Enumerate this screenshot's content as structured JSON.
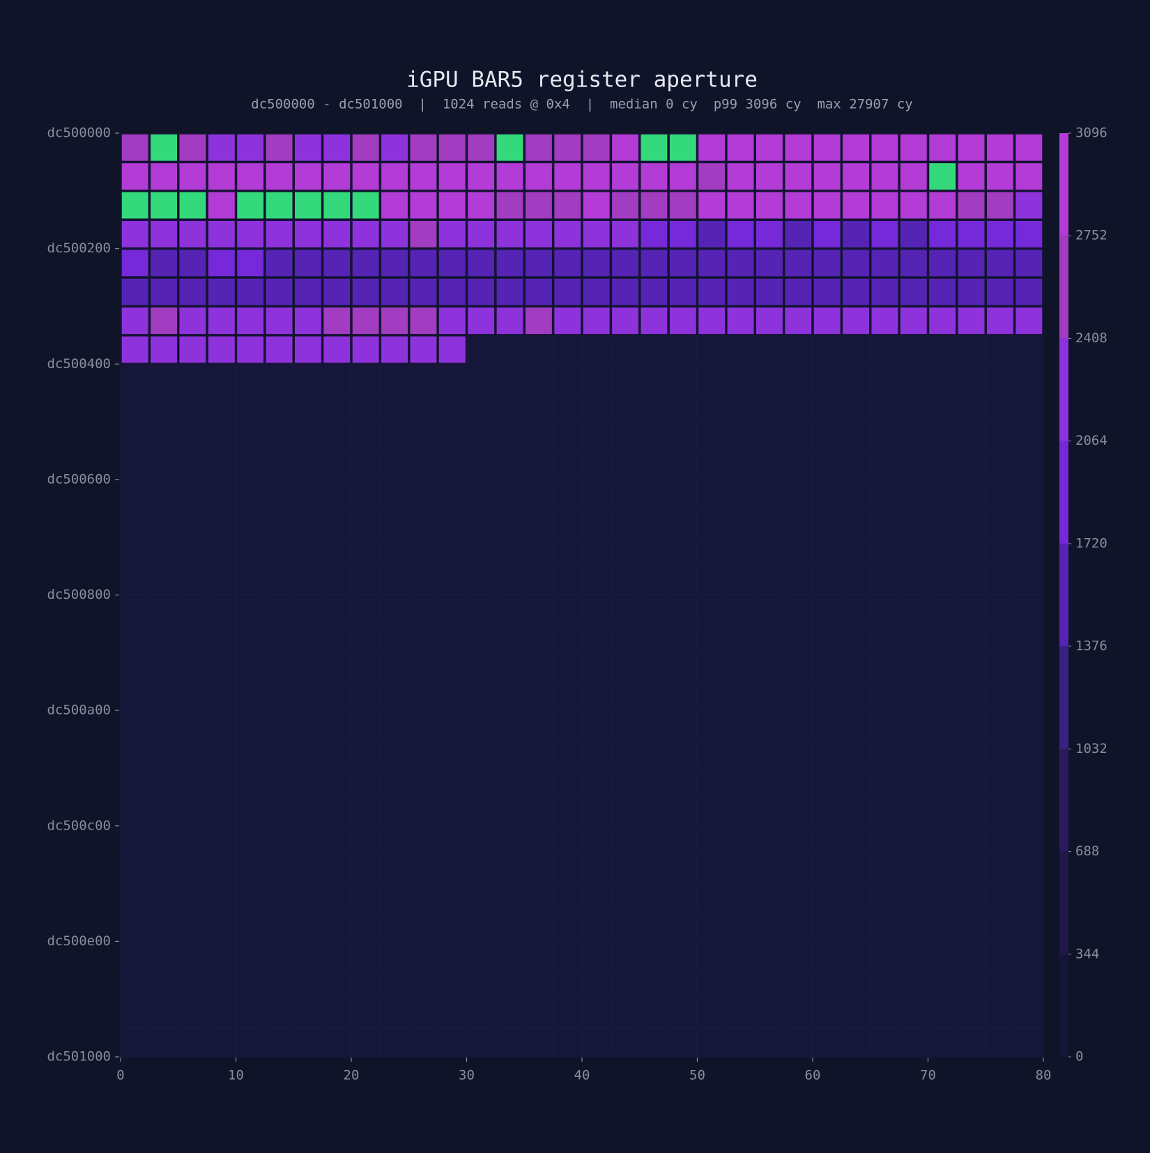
{
  "chart_data": {
    "type": "heatmap",
    "title": "iGPU BAR5 register aperture",
    "subtitle": "dc500000 - dc501000  |  1024 reads @ 0x4  |  median 0 cy  p99 3096 cy  max 27907 cy",
    "xlim": [
      0,
      80
    ],
    "xticks": [
      0,
      10,
      20,
      30,
      40,
      50,
      60,
      70,
      80
    ],
    "ylim": [
      0,
      4096
    ],
    "yticks": [
      {
        "value": 0,
        "label": "dc500000"
      },
      {
        "value": 512,
        "label": "dc500200"
      },
      {
        "value": 1024,
        "label": "dc500400"
      },
      {
        "value": 1536,
        "label": "dc500600"
      },
      {
        "value": 2048,
        "label": "dc500800"
      },
      {
        "value": 2560,
        "label": "dc500a00"
      },
      {
        "value": 3072,
        "label": "dc500c00"
      },
      {
        "value": 3584,
        "label": "dc500e00"
      },
      {
        "value": 4096,
        "label": "dc501000"
      }
    ],
    "clim": [
      0,
      3096
    ],
    "colorbar_ticks": [
      0,
      344,
      688,
      1032,
      1376,
      1720,
      2064,
      2408,
      2752,
      3096
    ],
    "colors": [
      "#17163a",
      "#1f1848",
      "#2a1a5e",
      "#3b2084",
      "#5624b4",
      "#7529d9",
      "#8e33dc",
      "#a23cc0",
      "#b33bd6"
    ],
    "over_color": "#34d97b",
    "values": [
      [
        2600,
        3400,
        2620,
        2250,
        2280,
        2590,
        2260,
        2240,
        2610,
        2270,
        2580,
        2600,
        2570,
        3500,
        2620,
        2590,
        2610,
        2900,
        3450,
        27907,
        2910,
        2920,
        2900,
        2890,
        2930,
        2900,
        2910,
        2880,
        2920,
        2900,
        2890,
        2910
      ],
      [
        2900,
        2910,
        2890,
        2920,
        2900,
        2910,
        2880,
        2900,
        2920,
        2890,
        2910,
        2900,
        2880,
        2920,
        2900,
        2910,
        2890,
        2900,
        2920,
        2910,
        2620,
        2900,
        2890,
        2910,
        2900,
        2920,
        2890,
        2900,
        3380,
        2910,
        2900,
        2890
      ],
      [
        3420,
        3380,
        3400,
        2910,
        3390,
        3410,
        3400,
        3380,
        3420,
        2900,
        2890,
        2910,
        2880,
        2600,
        2610,
        2590,
        2900,
        2620,
        2580,
        2600,
        2900,
        2910,
        2890,
        2920,
        2900,
        2910,
        2890,
        2900,
        2880,
        2610,
        2590,
        2250
      ],
      [
        2280,
        2260,
        2250,
        2230,
        2240,
        2260,
        2250,
        2220,
        2240,
        2230,
        2590,
        2240,
        2230,
        2250,
        2220,
        2240,
        2210,
        2230,
        1950,
        1900,
        1600,
        1880,
        1910,
        1620,
        1890,
        1580,
        1920,
        1600,
        1950,
        1900,
        1880,
        1920
      ],
      [
        1900,
        1620,
        1600,
        1880,
        1860,
        1580,
        1550,
        1540,
        1560,
        1530,
        1570,
        1550,
        1520,
        1540,
        1560,
        1530,
        1550,
        1520,
        1540,
        1560,
        1530,
        1550,
        1520,
        1540,
        1560,
        1530,
        1550,
        1540,
        1520,
        1560,
        1530,
        1550
      ],
      [
        1560,
        1540,
        1550,
        1520,
        1530,
        1500,
        1510,
        1520,
        1540,
        1550,
        1530,
        1520,
        1540,
        1510,
        1530,
        1520,
        1510,
        1530,
        1520,
        1540,
        1510,
        1530,
        1520,
        1510,
        1540,
        1530,
        1520,
        1540,
        1510,
        1530,
        1520,
        1540
      ],
      [
        2200,
        2600,
        2250,
        2230,
        2210,
        2220,
        2240,
        2620,
        2590,
        2610,
        2580,
        2230,
        2210,
        2240,
        2600,
        2220,
        2210,
        2230,
        2240,
        2220,
        2230,
        2210,
        2240,
        2220,
        2230,
        2210,
        2240,
        2220,
        2230,
        2210,
        2220,
        2230
      ],
      [
        2200,
        2210,
        2190,
        2220,
        2200,
        2210,
        2190,
        2200,
        2210,
        2190,
        2200,
        2210,
        null,
        null,
        null,
        null,
        null,
        null,
        null,
        null,
        null,
        null,
        null,
        null,
        null,
        null,
        null,
        null,
        null,
        null,
        null,
        null
      ],
      [
        null,
        null,
        null,
        null,
        null,
        null,
        null,
        null,
        null,
        null,
        null,
        null,
        null,
        null,
        null,
        null,
        null,
        null,
        null,
        null,
        null,
        null,
        null,
        null,
        null,
        null,
        null,
        null,
        null,
        null,
        null,
        null
      ],
      [
        null,
        null,
        null,
        null,
        null,
        null,
        null,
        null,
        null,
        null,
        null,
        null,
        null,
        null,
        null,
        null,
        null,
        null,
        null,
        null,
        null,
        null,
        null,
        null,
        null,
        null,
        null,
        null,
        null,
        null,
        null,
        null
      ],
      [
        null,
        null,
        null,
        null,
        null,
        null,
        null,
        null,
        null,
        null,
        null,
        null,
        null,
        null,
        null,
        null,
        null,
        null,
        null,
        null,
        null,
        null,
        null,
        null,
        null,
        null,
        null,
        null,
        null,
        null,
        null,
        null
      ],
      [
        null,
        null,
        null,
        null,
        null,
        null,
        null,
        null,
        null,
        null,
        null,
        null,
        null,
        null,
        null,
        null,
        null,
        null,
        null,
        null,
        null,
        null,
        null,
        null,
        null,
        null,
        null,
        null,
        null,
        null,
        null,
        null
      ],
      [
        null,
        null,
        null,
        null,
        null,
        null,
        null,
        null,
        null,
        null,
        null,
        null,
        null,
        null,
        null,
        null,
        null,
        null,
        null,
        null,
        null,
        null,
        null,
        null,
        null,
        null,
        null,
        null,
        null,
        null,
        null,
        null
      ],
      [
        null,
        null,
        null,
        null,
        null,
        null,
        null,
        null,
        null,
        null,
        null,
        null,
        null,
        null,
        null,
        null,
        null,
        null,
        null,
        null,
        null,
        null,
        null,
        null,
        null,
        null,
        null,
        null,
        null,
        null,
        null,
        null
      ],
      [
        null,
        null,
        null,
        null,
        null,
        null,
        null,
        null,
        null,
        null,
        null,
        null,
        null,
        null,
        null,
        null,
        null,
        null,
        null,
        null,
        null,
        null,
        null,
        null,
        null,
        null,
        null,
        null,
        null,
        null,
        null,
        null
      ],
      [
        null,
        null,
        null,
        null,
        null,
        null,
        null,
        null,
        null,
        null,
        null,
        null,
        null,
        null,
        null,
        null,
        null,
        null,
        null,
        null,
        null,
        null,
        null,
        null,
        null,
        null,
        null,
        null,
        null,
        null,
        null,
        null
      ],
      [
        null,
        null,
        null,
        null,
        null,
        null,
        null,
        null,
        null,
        null,
        null,
        null,
        null,
        null,
        null,
        null,
        null,
        null,
        null,
        null,
        null,
        null,
        null,
        null,
        null,
        null,
        null,
        null,
        null,
        null,
        null,
        null
      ],
      [
        null,
        null,
        null,
        null,
        null,
        null,
        null,
        null,
        null,
        null,
        null,
        null,
        null,
        null,
        null,
        null,
        null,
        null,
        null,
        null,
        null,
        null,
        null,
        null,
        null,
        null,
        null,
        null,
        null,
        null,
        null,
        null
      ],
      [
        null,
        null,
        null,
        null,
        null,
        null,
        null,
        null,
        null,
        null,
        null,
        null,
        null,
        null,
        null,
        null,
        null,
        null,
        null,
        null,
        null,
        null,
        null,
        null,
        null,
        null,
        null,
        null,
        null,
        null,
        null,
        null
      ],
      [
        null,
        null,
        null,
        null,
        null,
        null,
        null,
        null,
        null,
        null,
        null,
        null,
        null,
        null,
        null,
        null,
        null,
        null,
        null,
        null,
        null,
        null,
        null,
        null,
        null,
        null,
        null,
        null,
        null,
        null,
        null,
        null
      ],
      [
        null,
        null,
        null,
        null,
        null,
        null,
        null,
        null,
        null,
        null,
        null,
        null,
        null,
        null,
        null,
        null,
        null,
        null,
        null,
        null,
        null,
        null,
        null,
        null,
        null,
        null,
        null,
        null,
        null,
        null,
        null,
        null
      ],
      [
        null,
        null,
        null,
        null,
        null,
        null,
        null,
        null,
        null,
        null,
        null,
        null,
        null,
        null,
        null,
        null,
        null,
        null,
        null,
        null,
        null,
        null,
        null,
        null,
        null,
        null,
        null,
        null,
        null,
        null,
        null,
        null
      ],
      [
        null,
        null,
        null,
        null,
        null,
        null,
        null,
        null,
        null,
        null,
        null,
        null,
        null,
        null,
        null,
        null,
        null,
        null,
        null,
        null,
        null,
        null,
        null,
        null,
        null,
        null,
        null,
        null,
        null,
        null,
        null,
        null
      ],
      [
        null,
        null,
        null,
        null,
        null,
        null,
        null,
        null,
        null,
        null,
        null,
        null,
        null,
        null,
        null,
        null,
        null,
        null,
        null,
        null,
        null,
        null,
        null,
        null,
        null,
        null,
        null,
        null,
        null,
        null,
        null,
        null
      ],
      [
        null,
        null,
        null,
        null,
        null,
        null,
        null,
        null,
        null,
        null,
        null,
        null,
        null,
        null,
        null,
        null,
        null,
        null,
        null,
        null,
        null,
        null,
        null,
        null,
        null,
        null,
        null,
        null,
        null,
        null,
        null,
        null
      ],
      [
        null,
        null,
        null,
        null,
        null,
        null,
        null,
        null,
        null,
        null,
        null,
        null,
        null,
        null,
        null,
        null,
        null,
        null,
        null,
        null,
        null,
        null,
        null,
        null,
        null,
        null,
        null,
        null,
        null,
        null,
        null,
        null
      ],
      [
        null,
        null,
        null,
        null,
        null,
        null,
        null,
        null,
        null,
        null,
        null,
        null,
        null,
        null,
        null,
        null,
        null,
        null,
        null,
        null,
        null,
        null,
        null,
        null,
        null,
        null,
        null,
        null,
        null,
        null,
        null,
        null
      ],
      [
        null,
        null,
        null,
        null,
        null,
        null,
        null,
        null,
        null,
        null,
        null,
        null,
        null,
        null,
        null,
        null,
        null,
        null,
        null,
        null,
        null,
        null,
        null,
        null,
        null,
        null,
        null,
        null,
        null,
        null,
        null,
        null
      ],
      [
        null,
        null,
        null,
        null,
        null,
        null,
        null,
        null,
        null,
        null,
        null,
        null,
        null,
        null,
        null,
        null,
        null,
        null,
        null,
        null,
        null,
        null,
        null,
        null,
        null,
        null,
        null,
        null,
        null,
        null,
        null,
        null
      ],
      [
        null,
        null,
        null,
        null,
        null,
        null,
        null,
        null,
        null,
        null,
        null,
        null,
        null,
        null,
        null,
        null,
        null,
        null,
        null,
        null,
        null,
        null,
        null,
        null,
        null,
        null,
        null,
        null,
        null,
        null,
        null,
        null
      ],
      [
        null,
        null,
        null,
        null,
        null,
        null,
        null,
        null,
        null,
        null,
        null,
        null,
        null,
        null,
        null,
        null,
        null,
        null,
        null,
        null,
        null,
        null,
        null,
        null,
        null,
        null,
        null,
        null,
        null,
        null,
        null,
        null
      ],
      [
        null,
        null,
        null,
        null,
        null,
        null,
        null,
        null,
        null,
        null,
        null,
        null,
        null,
        null,
        null,
        null,
        null,
        null,
        null,
        null,
        null,
        null,
        null,
        null,
        null,
        null,
        null,
        null,
        null,
        null,
        null,
        null
      ]
    ]
  }
}
